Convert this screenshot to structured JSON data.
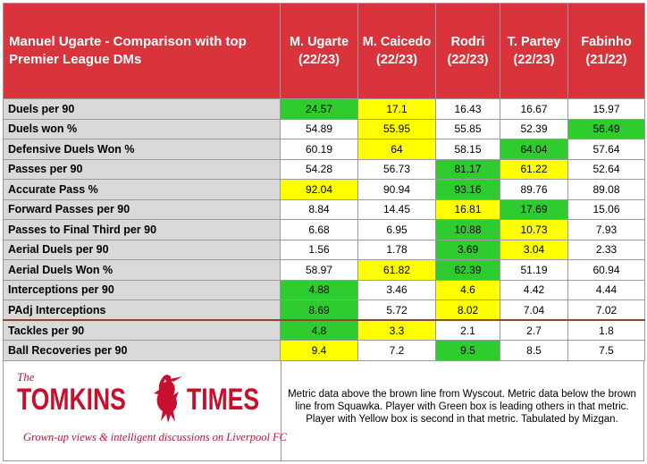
{
  "header": {
    "title": "Manuel Ugarte - Comparison with top Premier League DMs",
    "players": [
      {
        "name": "M. Ugarte",
        "season": "(22/23)"
      },
      {
        "name": "M. Caicedo",
        "season": "(22/23)"
      },
      {
        "name": "Rodri",
        "season": "(22/23)"
      },
      {
        "name": "T. Partey",
        "season": "(22/23)"
      },
      {
        "name": "Fabinho",
        "season": "(21/22)"
      }
    ]
  },
  "colors": {
    "green": "#2ecc2e",
    "yellow": "#ffff00",
    "header_red": "#d9343b",
    "separator_brown": "#8b4a2b"
  },
  "rows": [
    {
      "metric": "Duels per 90",
      "values": [
        "24.57",
        "17.1",
        "16.43",
        "16.67",
        "15.97"
      ],
      "highlight": [
        "green",
        "yellow",
        "",
        "",
        ""
      ]
    },
    {
      "metric": "Duels won %",
      "values": [
        "54.89",
        "55.95",
        "55.85",
        "52.39",
        "56.49"
      ],
      "highlight": [
        "",
        "yellow",
        "",
        "",
        "green"
      ]
    },
    {
      "metric": "Defensive Duels Won %",
      "values": [
        "60.19",
        "64",
        "58.15",
        "64.04",
        "57.64"
      ],
      "highlight": [
        "",
        "yellow",
        "",
        "green",
        ""
      ]
    },
    {
      "metric": "Passes per 90",
      "values": [
        "54.28",
        "56.73",
        "81.17",
        "61.22",
        "52.64"
      ],
      "highlight": [
        "",
        "",
        "green",
        "yellow",
        ""
      ]
    },
    {
      "metric": "Accurate Pass %",
      "values": [
        "92.04",
        "90.94",
        "93.16",
        "89.76",
        "89.08"
      ],
      "highlight": [
        "yellow",
        "",
        "green",
        "",
        ""
      ]
    },
    {
      "metric": "Forward Passes per 90",
      "values": [
        "8.84",
        "14.45",
        "16.81",
        "17.69",
        "15.06"
      ],
      "highlight": [
        "",
        "",
        "yellow",
        "green",
        ""
      ]
    },
    {
      "metric": "Passes to Final Third per 90",
      "values": [
        "6.68",
        "6.95",
        "10.88",
        "10.73",
        "7.93"
      ],
      "highlight": [
        "",
        "",
        "green",
        "yellow",
        ""
      ]
    },
    {
      "metric": "Aerial Duels per 90",
      "values": [
        "1.56",
        "1.78",
        "3.69",
        "3.04",
        "2.33"
      ],
      "highlight": [
        "",
        "",
        "green",
        "yellow",
        ""
      ]
    },
    {
      "metric": "Aerial Duels Won %",
      "values": [
        "58.97",
        "61.82",
        "62.39",
        "51.19",
        "60.94"
      ],
      "highlight": [
        "",
        "yellow",
        "green",
        "",
        ""
      ]
    },
    {
      "metric": "Interceptions per 90",
      "values": [
        "4.88",
        "3.46",
        "4.6",
        "4.42",
        "4.44"
      ],
      "highlight": [
        "green",
        "",
        "yellow",
        "",
        ""
      ]
    },
    {
      "metric": "PAdj Interceptions",
      "values": [
        "8.69",
        "5.72",
        "8.02",
        "7.04",
        "7.02"
      ],
      "highlight": [
        "green",
        "",
        "yellow",
        "",
        ""
      ]
    },
    {
      "metric": "Tackles per 90",
      "values": [
        "4.8",
        "3.3",
        "2.1",
        "2.7",
        "1.8"
      ],
      "highlight": [
        "green",
        "yellow",
        "",
        "",
        ""
      ],
      "separator": true
    },
    {
      "metric": "Ball Recoveries per 90",
      "values": [
        "9.4",
        "7.2",
        "9.5",
        "8.5",
        "7.5"
      ],
      "highlight": [
        "yellow",
        "",
        "green",
        "",
        ""
      ]
    }
  ],
  "footer": {
    "logo_the": "The",
    "logo_tomkins": "TOMKINS",
    "logo_times": "TIMES",
    "tagline": "Grown-up views & intelligent discussions on Liverpool FC",
    "logo_icon": "liver-bird-icon",
    "note": "Metric data above the brown line from Wyscout. Metric data below the brown line from Squawka. Player with Green box is leading others in that metric. Player with Yellow box is second in that metric. Tabulated by Mizgan."
  }
}
